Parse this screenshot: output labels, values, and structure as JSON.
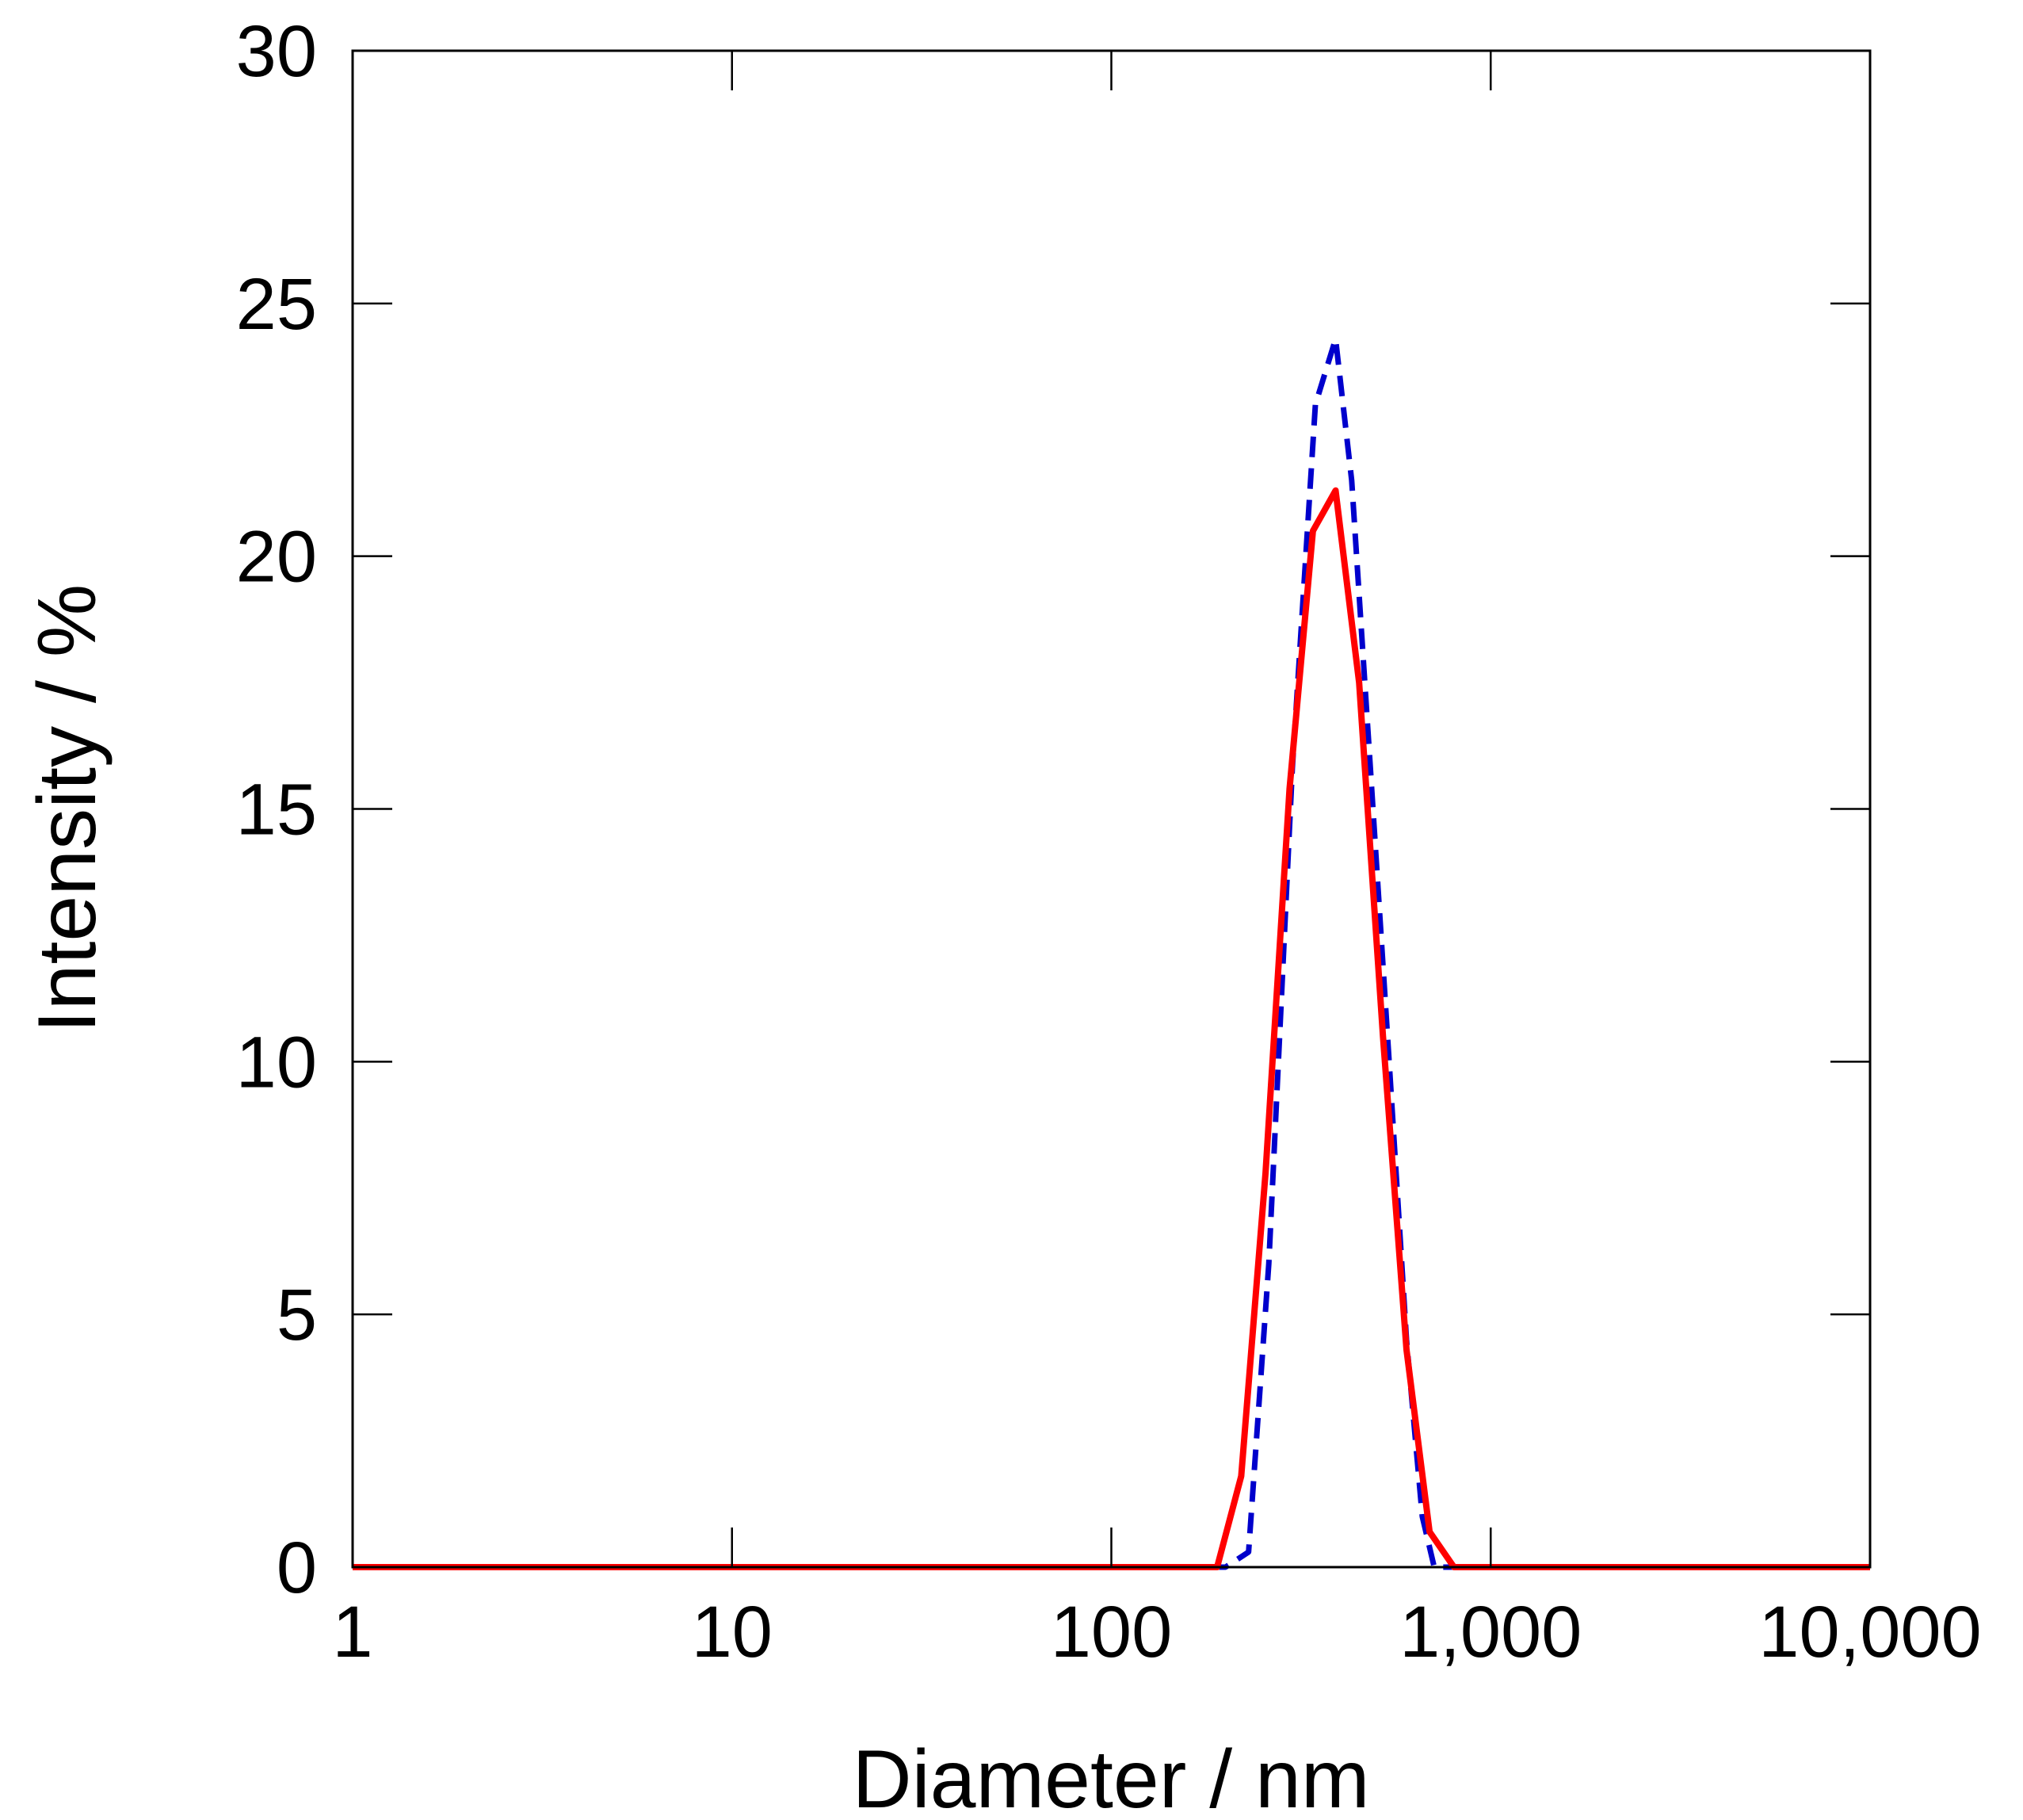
{
  "chart_data": {
    "type": "line",
    "title": "",
    "xlabel": "Diameter / nm",
    "ylabel": "Intensity / %",
    "xscale": "log",
    "xlim": [
      1,
      10000
    ],
    "ylim": [
      0,
      30
    ],
    "xticks": [
      1,
      10,
      100,
      1000,
      10000
    ],
    "xtick_labels": [
      "1",
      "10",
      "100",
      "1,000",
      "10,000"
    ],
    "yticks": [
      0,
      5,
      10,
      15,
      20,
      25,
      30
    ],
    "ytick_labels": [
      "0",
      "5",
      "10",
      "15",
      "20",
      "25",
      "30"
    ],
    "grid": false,
    "legend": "none",
    "series": [
      {
        "color": "#ff0000",
        "style": "solid",
        "x": [
          1,
          10,
          100,
          190,
          220,
          255,
          295,
          340,
          390,
          450,
          520,
          600,
          690,
          800,
          1000,
          10000
        ],
        "y": [
          0,
          0,
          0,
          0,
          1.8,
          7.8,
          15.4,
          20.5,
          21.3,
          17.5,
          10.5,
          4.3,
          0.7,
          0,
          0,
          0
        ]
      },
      {
        "color": "#0000cc",
        "style": "dashed",
        "x": [
          1,
          10,
          100,
          200,
          230,
          260,
          300,
          345,
          390,
          430,
          480,
          540,
          600,
          660,
          710,
          1000,
          10000
        ],
        "y": [
          0,
          0,
          0,
          0,
          0.3,
          6.0,
          15.8,
          23.0,
          24.3,
          21.5,
          16.0,
          10.0,
          4.5,
          1.0,
          0,
          0,
          0
        ]
      }
    ]
  }
}
